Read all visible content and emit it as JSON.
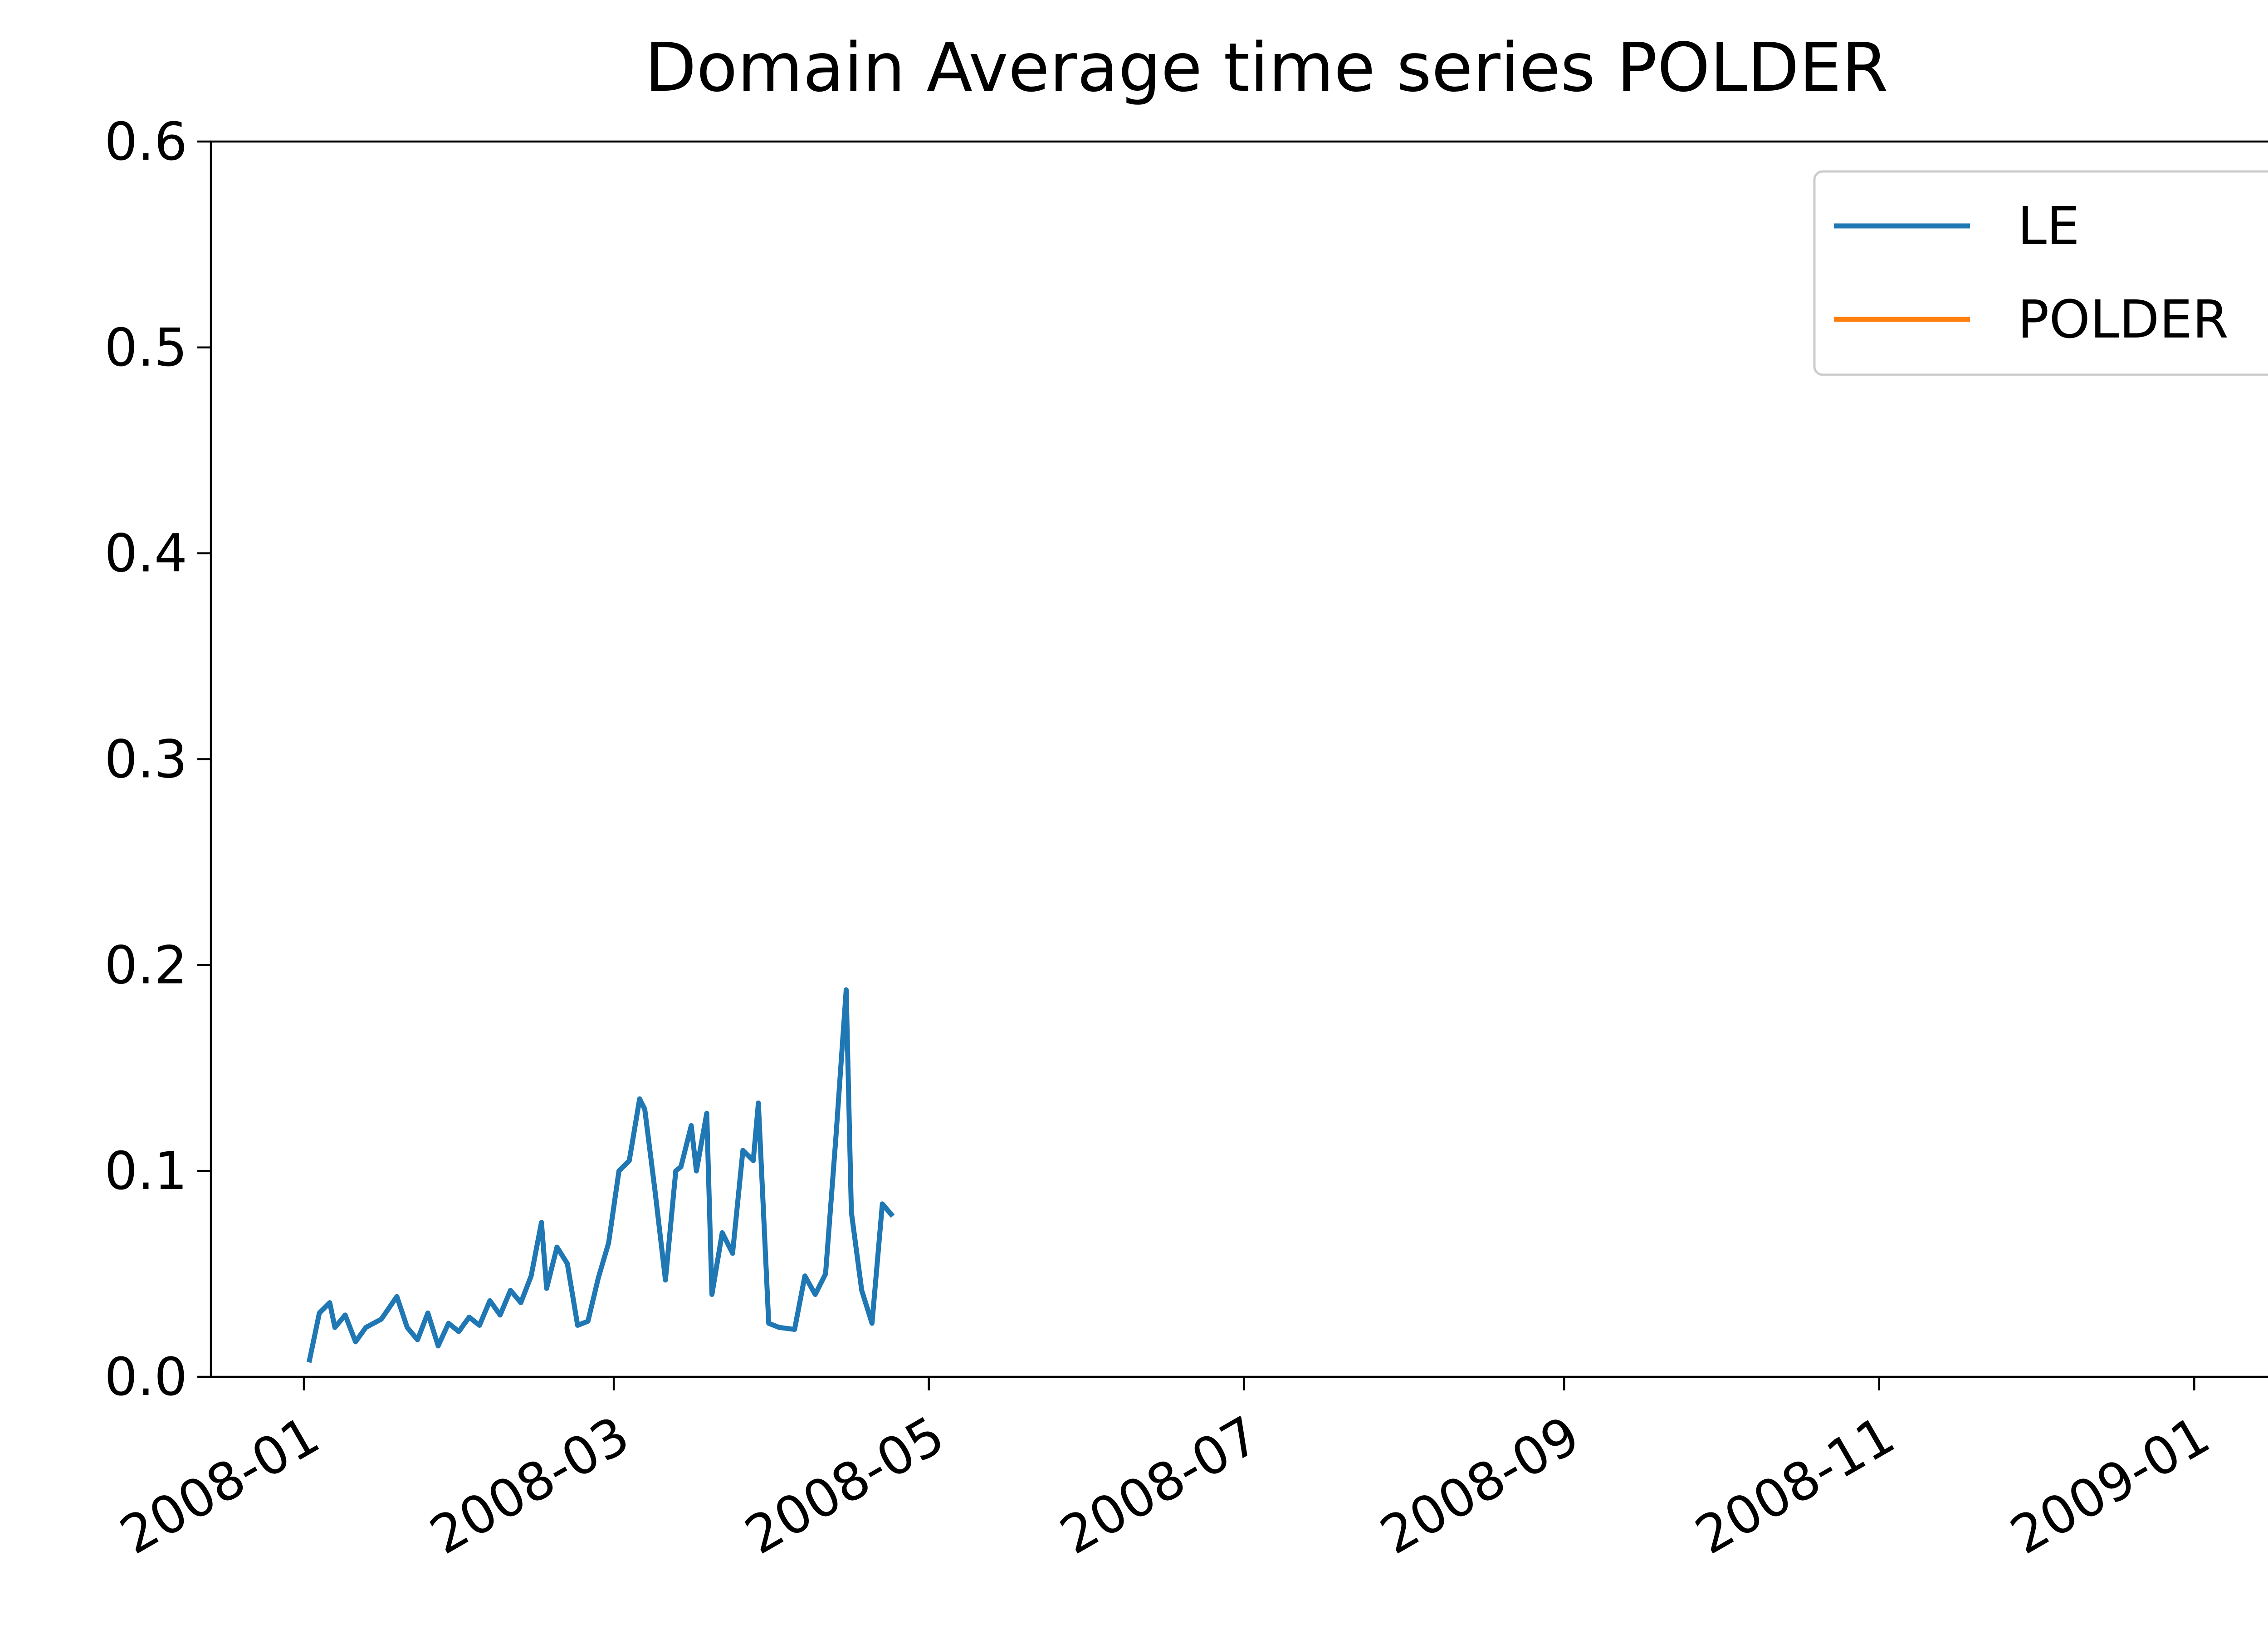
{
  "chart_data": {
    "type": "line",
    "title": "Domain Average time series POLDER",
    "xlabel": "",
    "ylabel": "",
    "x_axis_type": "date",
    "xlim": [
      "2007-12-14",
      "2009-01-26"
    ],
    "ylim": [
      0.0,
      0.6
    ],
    "x_ticks": [
      "2008-01",
      "2008-03",
      "2008-05",
      "2008-07",
      "2008-09",
      "2008-11",
      "2009-01"
    ],
    "y_ticks": [
      "0.0",
      "0.1",
      "0.2",
      "0.3",
      "0.4",
      "0.5",
      "0.6"
    ],
    "grid": false,
    "legend_position": "upper right",
    "colors": {
      "LE": "#1f77b4",
      "POLDER": "#ff7f0e"
    },
    "series": [
      {
        "name": "LE",
        "points": [
          [
            "2008-01-02",
            0.007
          ],
          [
            "2008-01-04",
            0.031
          ],
          [
            "2008-01-06",
            0.036
          ],
          [
            "2008-01-07",
            0.024
          ],
          [
            "2008-01-09",
            0.03
          ],
          [
            "2008-01-11",
            0.017
          ],
          [
            "2008-01-13",
            0.024
          ],
          [
            "2008-01-16",
            0.028
          ],
          [
            "2008-01-19",
            0.039
          ],
          [
            "2008-01-21",
            0.024
          ],
          [
            "2008-01-23",
            0.018
          ],
          [
            "2008-01-25",
            0.031
          ],
          [
            "2008-01-27",
            0.015
          ],
          [
            "2008-01-29",
            0.026
          ],
          [
            "2008-01-31",
            0.022
          ],
          [
            "2008-02-02",
            0.029
          ],
          [
            "2008-02-04",
            0.025
          ],
          [
            "2008-02-06",
            0.037
          ],
          [
            "2008-02-08",
            0.03
          ],
          [
            "2008-02-10",
            0.042
          ],
          [
            "2008-02-12",
            0.036
          ],
          [
            "2008-02-14",
            0.049
          ],
          [
            "2008-02-16",
            0.075
          ],
          [
            "2008-02-17",
            0.043
          ],
          [
            "2008-02-19",
            0.063
          ],
          [
            "2008-02-21",
            0.055
          ],
          [
            "2008-02-23",
            0.025
          ],
          [
            "2008-02-25",
            0.027
          ],
          [
            "2008-02-27",
            0.048
          ],
          [
            "2008-02-29",
            0.065
          ],
          [
            "2008-03-02",
            0.1
          ],
          [
            "2008-03-04",
            0.105
          ],
          [
            "2008-03-06",
            0.135
          ],
          [
            "2008-03-07",
            0.13
          ],
          [
            "2008-03-09",
            0.09
          ],
          [
            "2008-03-11",
            0.047
          ],
          [
            "2008-03-13",
            0.1
          ],
          [
            "2008-03-14",
            0.102
          ],
          [
            "2008-03-16",
            0.122
          ],
          [
            "2008-03-17",
            0.1
          ],
          [
            "2008-03-19",
            0.128
          ],
          [
            "2008-03-20",
            0.04
          ],
          [
            "2008-03-22",
            0.07
          ],
          [
            "2008-03-24",
            0.06
          ],
          [
            "2008-03-26",
            0.11
          ],
          [
            "2008-03-28",
            0.105
          ],
          [
            "2008-03-29",
            0.133
          ],
          [
            "2008-03-31",
            0.026
          ],
          [
            "2008-04-02",
            0.024
          ],
          [
            "2008-04-05",
            0.023
          ],
          [
            "2008-04-07",
            0.049
          ],
          [
            "2008-04-09",
            0.04
          ],
          [
            "2008-04-11",
            0.05
          ],
          [
            "2008-04-13",
            0.116
          ],
          [
            "2008-04-15",
            0.188
          ],
          [
            "2008-04-16",
            0.08
          ],
          [
            "2008-04-18",
            0.042
          ],
          [
            "2008-04-20",
            0.026
          ],
          [
            "2008-04-22",
            0.084
          ],
          [
            "2008-04-24",
            0.078
          ]
        ]
      },
      {
        "name": "POLDER",
        "points": []
      }
    ]
  }
}
